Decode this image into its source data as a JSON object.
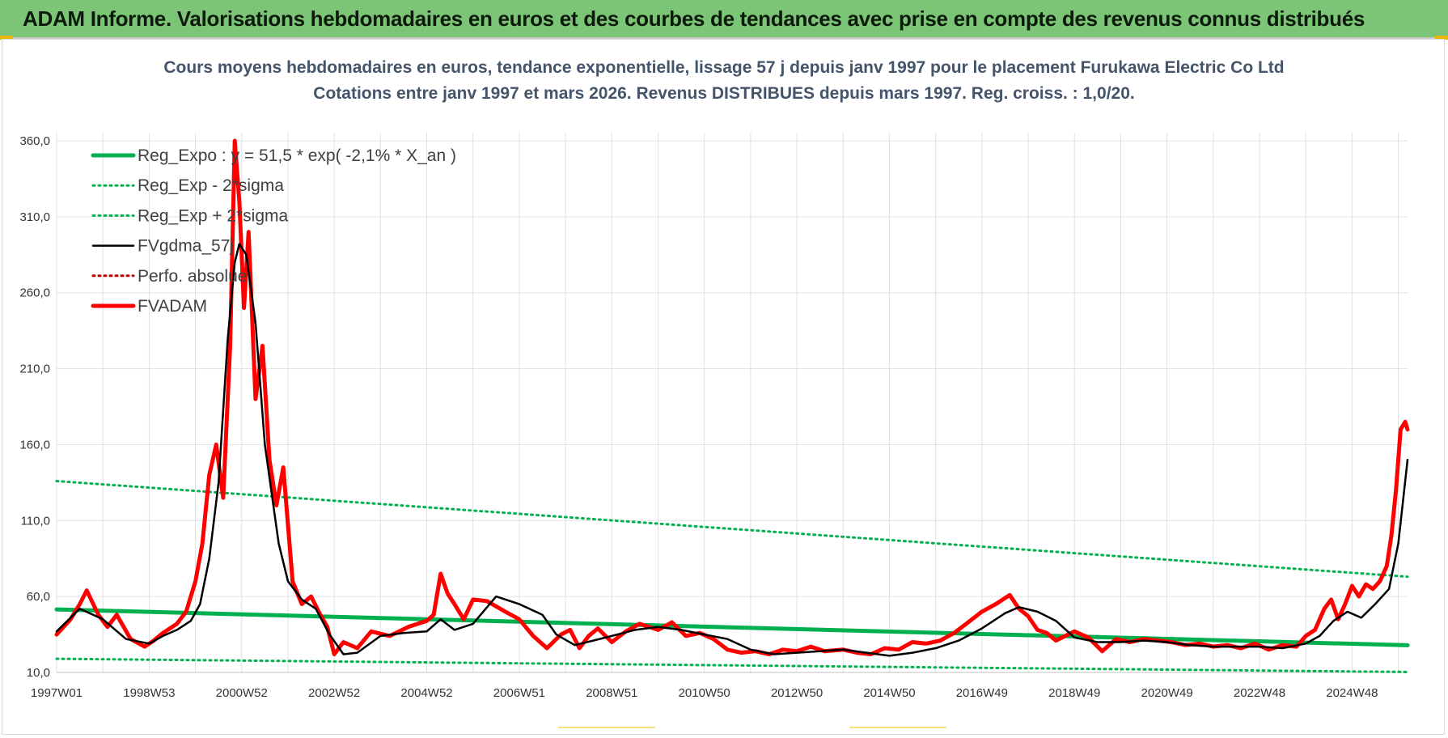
{
  "banner": {
    "title": "ADAM Informe. Valorisations hebdomadaires en euros et des courbes de tendances avec prise en compte des revenus connus distribués"
  },
  "colors": {
    "banner_bg": "#7cc576",
    "title_text": "#44546a",
    "reg_green": "#00b050",
    "fvgdma_black": "#000000",
    "fvadam_red": "#ff0000",
    "perfo_red": "#c00000",
    "grid": "#e0e0e0"
  },
  "chart_data": {
    "type": "line",
    "title": "Cours moyens hebdomadaires en euros, tendance exponentielle, lissage 57 j depuis janv 1997  pour le placement Furukawa Electric Co Ltd",
    "subtitle": "Cotations entre janv 1997 et mars 2026. Revenus DISTRIBUES depuis mars 1997.  Reg. croiss. : 1,0/20.",
    "xlabel": "",
    "ylabel": "",
    "x_range": [
      1997.0,
      2026.2
    ],
    "ylim": [
      10,
      360
    ],
    "y_ticks": [
      "10,0",
      "60,0",
      "110,0",
      "160,0",
      "210,0",
      "260,0",
      "310,0",
      "360,0"
    ],
    "y_tick_values": [
      10,
      60,
      110,
      160,
      210,
      260,
      310,
      360
    ],
    "x_tick_labels": [
      "1997W01",
      "1998W53",
      "2000W52",
      "2002W52",
      "2004W52",
      "2006W51",
      "2008W51",
      "2010W50",
      "2012W50",
      "2014W50",
      "2016W49",
      "2018W49",
      "2020W49",
      "2022W48",
      "2024W48"
    ],
    "x_tick_positions": [
      1997.0,
      1999.0,
      2001.0,
      2003.0,
      2005.0,
      2007.0,
      2009.0,
      2011.0,
      2013.0,
      2015.0,
      2017.0,
      2019.0,
      2021.0,
      2023.0,
      2025.0
    ],
    "grid": true,
    "legend_position": "top-left",
    "series": [
      {
        "name": "Reg_Expo : y = 51,5 * exp( -2,1% *  X_an )",
        "style": "solid-thick",
        "color": "#00b050",
        "x": [
          1997.0,
          2026.2
        ],
        "y": [
          51.5,
          27.9
        ]
      },
      {
        "name": "Reg_Exp - 2*sigma",
        "style": "dotted",
        "color": "#00b050",
        "x": [
          1997.0,
          2026.2
        ],
        "y": [
          19.0,
          10.3
        ]
      },
      {
        "name": "Reg_Exp + 2*sigma",
        "style": "dotted",
        "color": "#00b050",
        "x": [
          1997.0,
          2026.2
        ],
        "y": [
          136.0,
          73.0
        ]
      },
      {
        "name": "FVgdma_57j",
        "style": "solid",
        "color": "#000000",
        "x": [
          1997.0,
          1997.5,
          1998.0,
          1998.5,
          1999.0,
          1999.3,
          1999.6,
          1999.9,
          2000.1,
          2000.3,
          2000.5,
          2000.7,
          2000.85,
          2000.95,
          2001.1,
          2001.3,
          2001.5,
          2001.8,
          2002.0,
          2002.3,
          2002.6,
          2002.9,
          2003.2,
          2003.5,
          2004.0,
          2004.5,
          2005.0,
          2005.3,
          2005.6,
          2006.0,
          2006.5,
          2007.0,
          2007.5,
          2007.8,
          2008.2,
          2008.6,
          2009.0,
          2009.5,
          2010.0,
          2010.5,
          2011.0,
          2011.5,
          2012.0,
          2012.5,
          2013.0,
          2013.5,
          2014.0,
          2014.5,
          2015.0,
          2015.5,
          2016.0,
          2016.5,
          2017.0,
          2017.5,
          2017.8,
          2018.2,
          2018.6,
          2019.0,
          2019.5,
          2020.0,
          2020.5,
          2021.0,
          2021.5,
          2022.0,
          2022.5,
          2023.0,
          2023.5,
          2024.0,
          2024.3,
          2024.6,
          2024.9,
          2025.2,
          2025.5,
          2025.8,
          2026.0,
          2026.2
        ],
        "y": [
          37,
          52,
          45,
          32,
          29,
          34,
          38,
          44,
          55,
          85,
          135,
          230,
          280,
          292,
          285,
          240,
          160,
          95,
          70,
          58,
          52,
          35,
          22,
          23,
          34,
          36,
          37,
          45,
          38,
          42,
          60,
          55,
          48,
          35,
          28,
          31,
          34,
          38,
          40,
          38,
          35,
          32,
          25,
          22,
          23,
          24,
          25,
          23,
          21,
          23,
          26,
          31,
          39,
          49,
          53,
          50,
          44,
          33,
          30,
          30,
          31,
          30,
          28,
          27,
          27,
          27,
          26,
          29,
          34,
          44,
          50,
          46,
          55,
          65,
          95,
          150
        ]
      },
      {
        "name": "Perfo. absolue",
        "style": "dotted",
        "color": "#c00000",
        "x": [],
        "y": []
      },
      {
        "name": "FVADAM",
        "style": "solid-thick",
        "color": "#ff0000",
        "x": [
          1997.0,
          1997.3,
          1997.5,
          1997.65,
          1997.9,
          1998.1,
          1998.3,
          1998.6,
          1998.9,
          1999.1,
          1999.3,
          1999.6,
          1999.8,
          2000.0,
          2000.15,
          2000.3,
          2000.45,
          2000.6,
          2000.75,
          2000.85,
          2000.95,
          2001.05,
          2001.15,
          2001.3,
          2001.45,
          2001.6,
          2001.75,
          2001.9,
          2002.1,
          2002.3,
          2002.5,
          2002.7,
          2002.85,
          2003.0,
          2003.2,
          2003.5,
          2003.8,
          2004.2,
          2004.6,
          2005.0,
          2005.15,
          2005.3,
          2005.45,
          2005.6,
          2005.8,
          2006.0,
          2006.3,
          2006.7,
          2007.0,
          2007.3,
          2007.6,
          2007.9,
          2008.1,
          2008.3,
          2008.5,
          2008.7,
          2009.0,
          2009.3,
          2009.6,
          2010.0,
          2010.3,
          2010.6,
          2010.9,
          2011.2,
          2011.5,
          2011.8,
          2012.1,
          2012.4,
          2012.7,
          2013.0,
          2013.3,
          2013.6,
          2014.0,
          2014.3,
          2014.6,
          2014.9,
          2015.2,
          2015.5,
          2015.8,
          2016.1,
          2016.4,
          2016.7,
          2017.0,
          2017.3,
          2017.6,
          2017.8,
          2018.0,
          2018.2,
          2018.4,
          2018.6,
          2018.8,
          2019.0,
          2019.3,
          2019.6,
          2019.9,
          2020.2,
          2020.5,
          2020.8,
          2021.1,
          2021.4,
          2021.7,
          2022.0,
          2022.3,
          2022.6,
          2022.9,
          2023.2,
          2023.5,
          2023.8,
          2024.0,
          2024.2,
          2024.4,
          2024.55,
          2024.7,
          2024.85,
          2025.0,
          2025.15,
          2025.3,
          2025.45,
          2025.6,
          2025.75,
          2025.85,
          2025.95,
          2026.05,
          2026.15,
          2026.2
        ],
        "y": [
          35,
          45,
          55,
          64,
          48,
          40,
          48,
          32,
          27,
          31,
          36,
          42,
          50,
          70,
          95,
          140,
          160,
          125,
          225,
          360,
          320,
          250,
          300,
          190,
          225,
          150,
          120,
          145,
          70,
          55,
          60,
          48,
          40,
          22,
          30,
          26,
          37,
          34,
          40,
          44,
          48,
          75,
          62,
          55,
          45,
          58,
          57,
          50,
          45,
          34,
          26,
          35,
          38,
          26,
          34,
          39,
          30,
          37,
          42,
          38,
          43,
          34,
          36,
          32,
          25,
          23,
          24,
          22,
          25,
          24,
          27,
          24,
          25,
          23,
          22,
          26,
          25,
          30,
          29,
          31,
          36,
          43,
          50,
          55,
          61,
          52,
          47,
          38,
          36,
          31,
          34,
          37,
          33,
          24,
          32,
          30,
          32,
          31,
          30,
          28,
          29,
          27,
          28,
          26,
          29,
          25,
          28,
          27,
          34,
          38,
          52,
          58,
          45,
          55,
          67,
          60,
          68,
          65,
          70,
          80,
          100,
          130,
          170,
          175,
          170
        ]
      }
    ]
  }
}
